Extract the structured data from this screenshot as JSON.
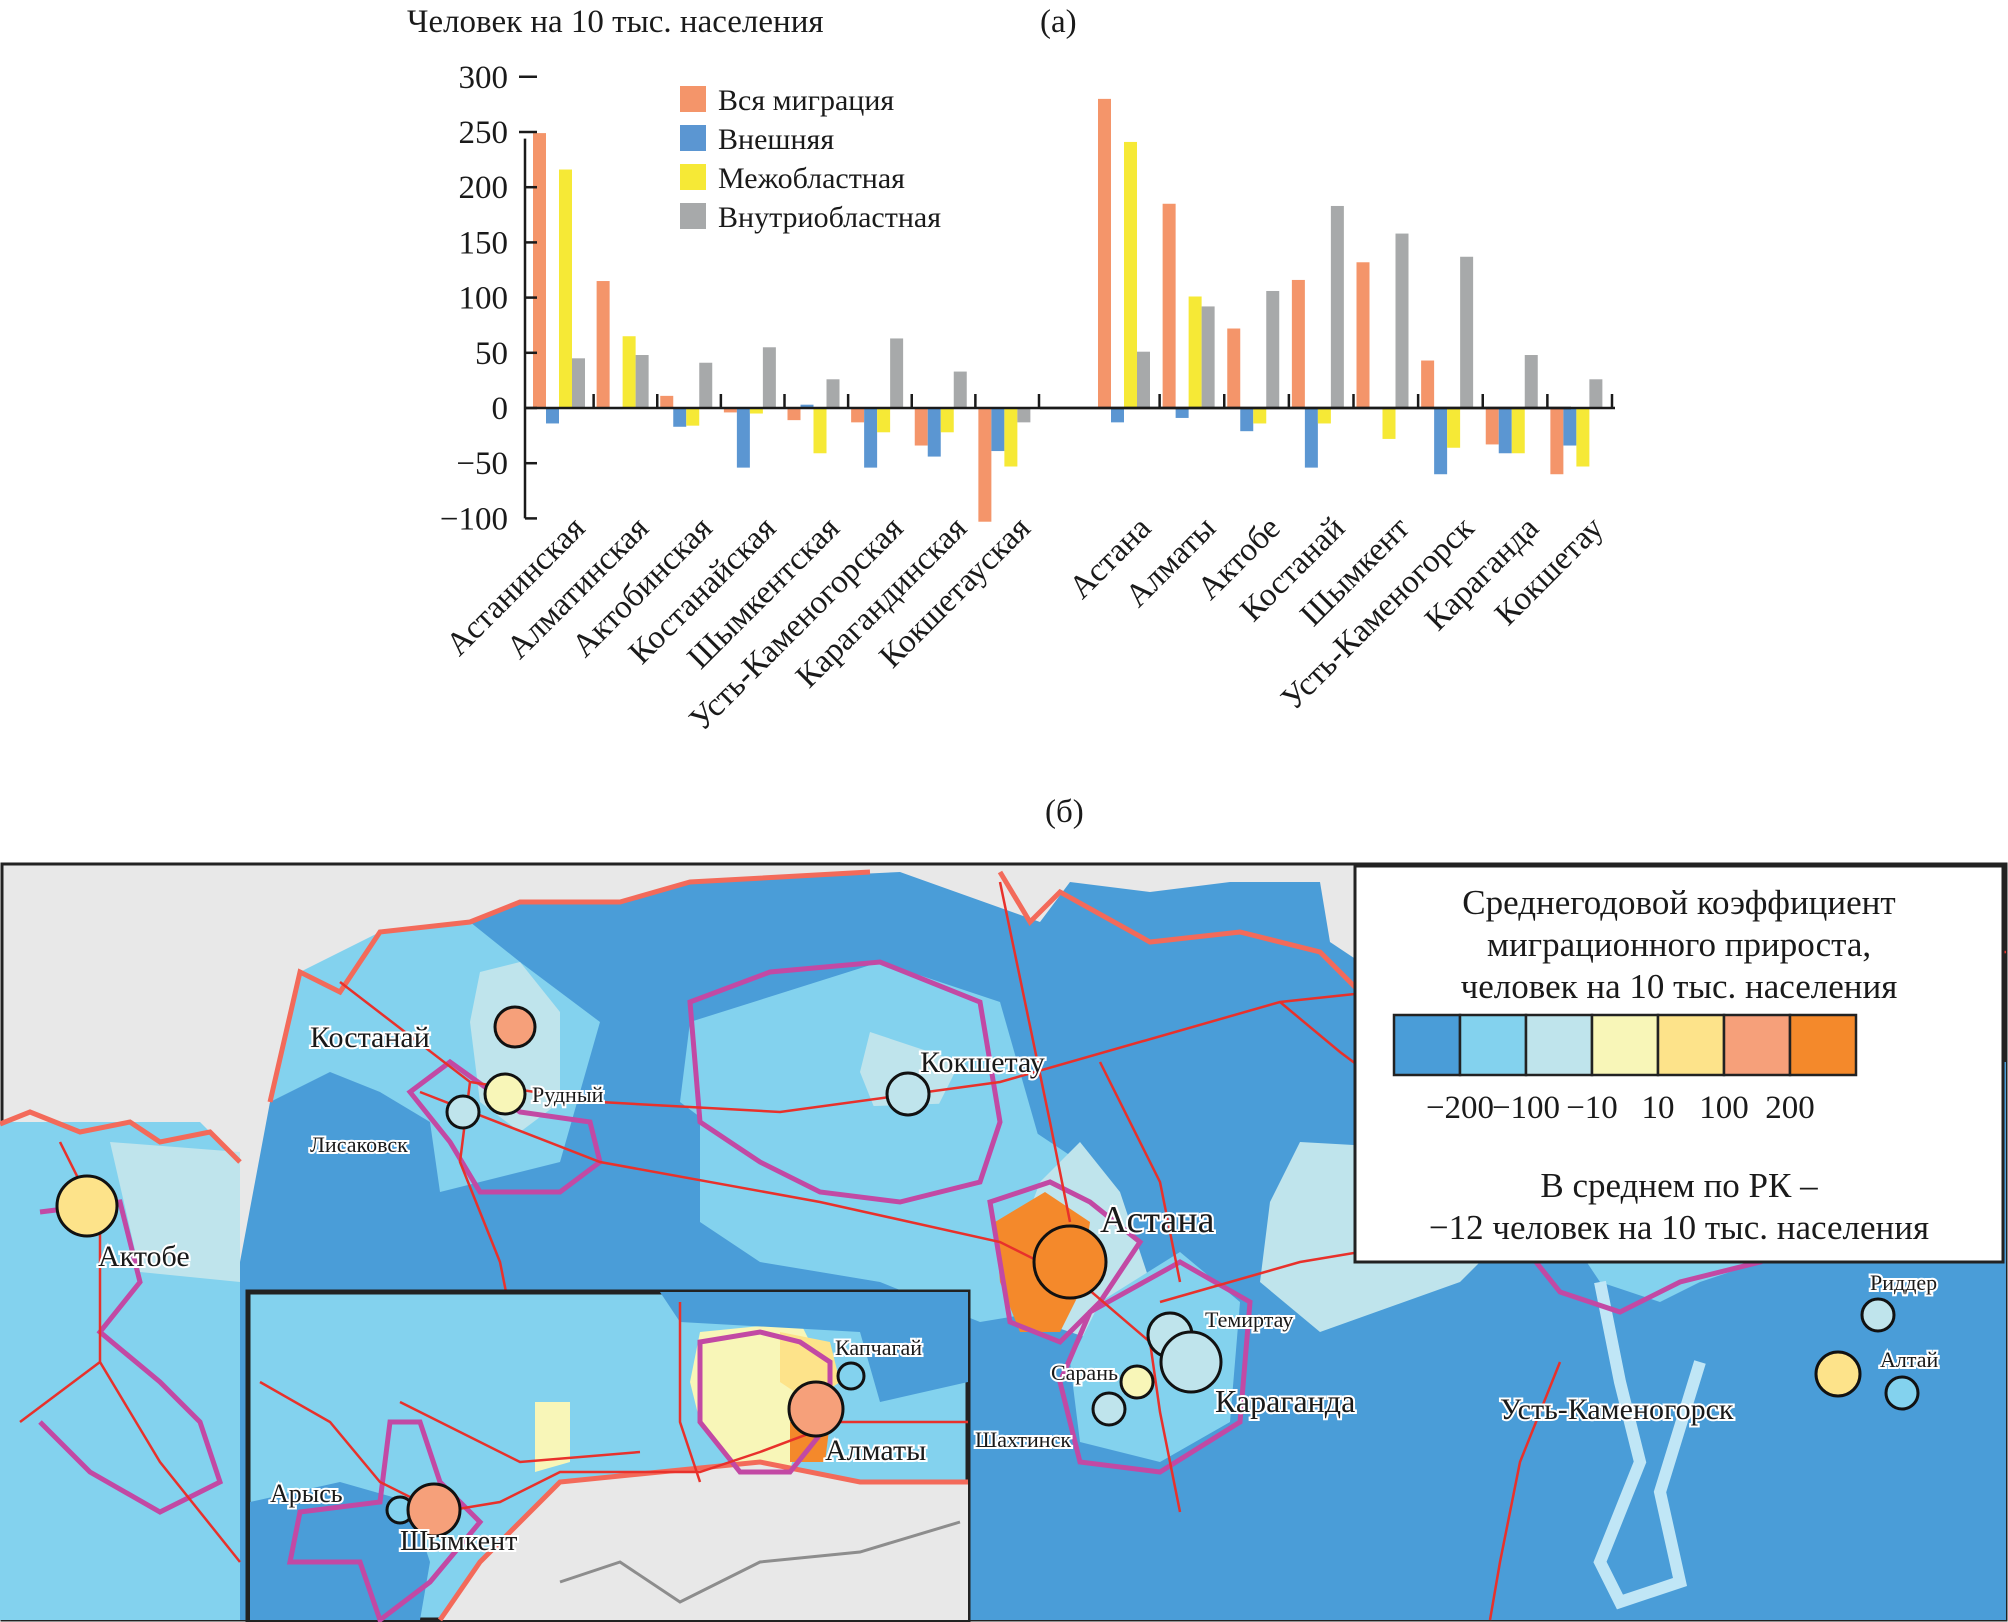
{
  "panel_a_label": "(а)",
  "panel_b_label": "(б)",
  "chart_data": {
    "type": "bar",
    "title": "",
    "ylabel": "Человек на 10 тыс. населения",
    "xlabel": "",
    "ylim": [
      -100,
      300
    ],
    "yticks": [
      -100,
      -50,
      0,
      50,
      100,
      150,
      200,
      250,
      300
    ],
    "ytick_labels": [
      "−100",
      "−50",
      "0",
      "50",
      "100",
      "150",
      "200",
      "250",
      "300"
    ],
    "grid": false,
    "legend_position": "top-center",
    "groups": [
      {
        "name": "oblasts",
        "categories": [
          "Астанинская",
          "Алматинская",
          "Актобинская",
          "Костанайская",
          "Шымкентская",
          "Усть-Каменогорская",
          "Карагандинская",
          "Кокшетауская"
        ]
      },
      {
        "name": "cities",
        "categories": [
          "Астана",
          "Алматы",
          "Актобе",
          "Костанай",
          "Шымкент",
          "Усть-Каменогорск",
          "Караганда",
          "Кокшетау"
        ]
      }
    ],
    "series": [
      {
        "name": "Вся миграция",
        "color": "#f4956a",
        "values": [
          249,
          115,
          11,
          -4,
          -11,
          -13,
          -34,
          -103,
          280,
          185,
          72,
          116,
          132,
          43,
          -33,
          -60
        ]
      },
      {
        "name": "Внешняя",
        "color": "#5b96d2",
        "values": [
          -14,
          -1,
          -17,
          -54,
          3,
          -54,
          -44,
          -39,
          -13,
          -9,
          -21,
          -54,
          0,
          -60,
          -41,
          -34
        ]
      },
      {
        "name": "Межобластная",
        "color": "#f6e936",
        "values": [
          216,
          65,
          -16,
          -5,
          -41,
          -22,
          -22,
          -53,
          241,
          101,
          -14,
          -14,
          -28,
          -36,
          -41,
          -53
        ]
      },
      {
        "name": "Внутриобластная",
        "color": "#a7a9aa",
        "values": [
          45,
          48,
          41,
          55,
          26,
          63,
          33,
          -13,
          51,
          92,
          106,
          183,
          158,
          137,
          48,
          26
        ]
      }
    ]
  },
  "map": {
    "legend": {
      "title_lines": [
        "Среднегодовой коэффициент",
        "миграционного прироста,",
        "человек на 10 тыс. населения"
      ],
      "classes": [
        {
          "color": "#4a9dd8"
        },
        {
          "color": "#83d2ee"
        },
        {
          "color": "#bfe4ec"
        },
        {
          "color": "#f8f6b8"
        },
        {
          "color": "#fde38a"
        },
        {
          "color": "#f6a07a"
        },
        {
          "color": "#f4892b"
        }
      ],
      "breaks": [
        "−200",
        "−100",
        "−10",
        "10",
        "100",
        "200"
      ],
      "average_lines": [
        "В среднем по РК –",
        "−12 человек на 10 тыс. населения"
      ]
    },
    "cities": [
      {
        "name": "Костанай",
        "class": 5
      },
      {
        "name": "Рудный",
        "class": 3
      },
      {
        "name": "Лисаковск",
        "class": 2
      },
      {
        "name": "Кокшетау",
        "class": 2
      },
      {
        "name": "Астана",
        "class": 6
      },
      {
        "name": "Темиртау",
        "class": 2
      },
      {
        "name": "Караганда",
        "class": 2
      },
      {
        "name": "Сарань",
        "class": 3
      },
      {
        "name": "Шахтинск",
        "class": 2
      },
      {
        "name": "Актобе",
        "class": 4
      },
      {
        "name": "Усть-Каменогорск",
        "class": 4
      },
      {
        "name": "Риддер",
        "class": 2
      },
      {
        "name": "Алтай",
        "class": 1
      },
      {
        "name": "Капчагай",
        "class": 1
      },
      {
        "name": "Алматы",
        "class": 5
      },
      {
        "name": "Арысь",
        "class": 1
      },
      {
        "name": "Шымкент",
        "class": 5
      }
    ]
  }
}
